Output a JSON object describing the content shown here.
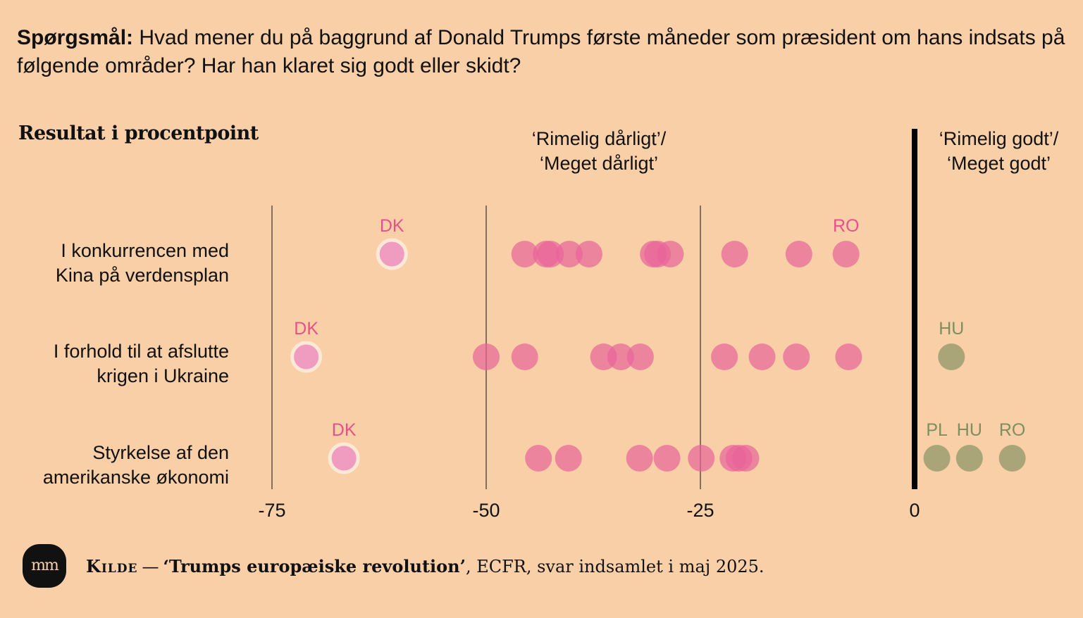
{
  "question": {
    "lead": "Spørgsmål:",
    "text": "Hvad mener du på baggrund af Donald Trumps første måneder som præsident om hans indsats på følgende områder? Har han klaret sig godt eller skidt?"
  },
  "subtitle": "Resultat i procentpoint",
  "headers": {
    "negative_line1": "‘Rimelig dårligt’/",
    "negative_line2": "‘Meget dårligt’",
    "positive_line1": "‘Rimelig godt’/",
    "positive_line2": "‘Meget godt’"
  },
  "rows": [
    {
      "label_line1": "I konkurrencen med",
      "label_line2": "Kina på verdensplan"
    },
    {
      "label_line1": "I forhold til at afslutte",
      "label_line2": "krigen i Ukraine"
    },
    {
      "label_line1": "Styrkelse af den",
      "label_line2": "amerikanske økonomi"
    }
  ],
  "chart_data": {
    "type": "scatter",
    "xlim": [
      -75,
      0
    ],
    "x_ticks": [
      -75,
      -50,
      -25,
      0
    ],
    "x_tick_labels": [
      "-75",
      "-50",
      "-25",
      "0"
    ],
    "categories": [
      "I konkurrencen med Kina på verdensplan",
      "I forhold til at afslutte krigen i Ukraine",
      "Styrkelse af den amerikanske økonomi"
    ],
    "colors": {
      "negative": "#e8649a",
      "positive": "#9c9d70",
      "denmark_ring": "#fbe8d6",
      "denmark_fill": "#f09bc0",
      "negative_label": "#e8508c",
      "positive_label": "#7e8f5f"
    },
    "points": [
      [
        {
          "x": -61,
          "label": "DK",
          "highlight": true
        },
        {
          "x": -45.5
        },
        {
          "x": -43
        },
        {
          "x": -42.5
        },
        {
          "x": -40.3
        },
        {
          "x": -38
        },
        {
          "x": -30.5
        },
        {
          "x": -30
        },
        {
          "x": -28.5
        },
        {
          "x": -21
        },
        {
          "x": -13.5
        },
        {
          "x": -8,
          "label": "RO"
        }
      ],
      [
        {
          "x": -71,
          "label": "DK",
          "highlight": true
        },
        {
          "x": -50
        },
        {
          "x": -45.5
        },
        {
          "x": -36.3
        },
        {
          "x": -34.3
        },
        {
          "x": -32
        },
        {
          "x": -22.2
        },
        {
          "x": -17.8
        },
        {
          "x": -13.8
        },
        {
          "x": -7.7
        },
        {
          "x": 4.3,
          "label": "HU"
        }
      ],
      [
        {
          "x": -66.6,
          "label": "DK",
          "highlight": true
        },
        {
          "x": -43.9
        },
        {
          "x": -40.4
        },
        {
          "x": -32.1
        },
        {
          "x": -28.9
        },
        {
          "x": -24.9
        },
        {
          "x": -21.2
        },
        {
          "x": -20.5
        },
        {
          "x": -19.7
        },
        {
          "x": 2.6,
          "label": "PL"
        },
        {
          "x": 6.4,
          "label": "HU"
        },
        {
          "x": 11.4,
          "label": "RO"
        }
      ]
    ]
  },
  "footer": {
    "logo": "mm",
    "kilde": "Kilde",
    "dash": "—",
    "source_title": "‘Trumps europæiske revolution’",
    "source_rest": ", ECFR, svar indsamlet i maj 2025."
  }
}
